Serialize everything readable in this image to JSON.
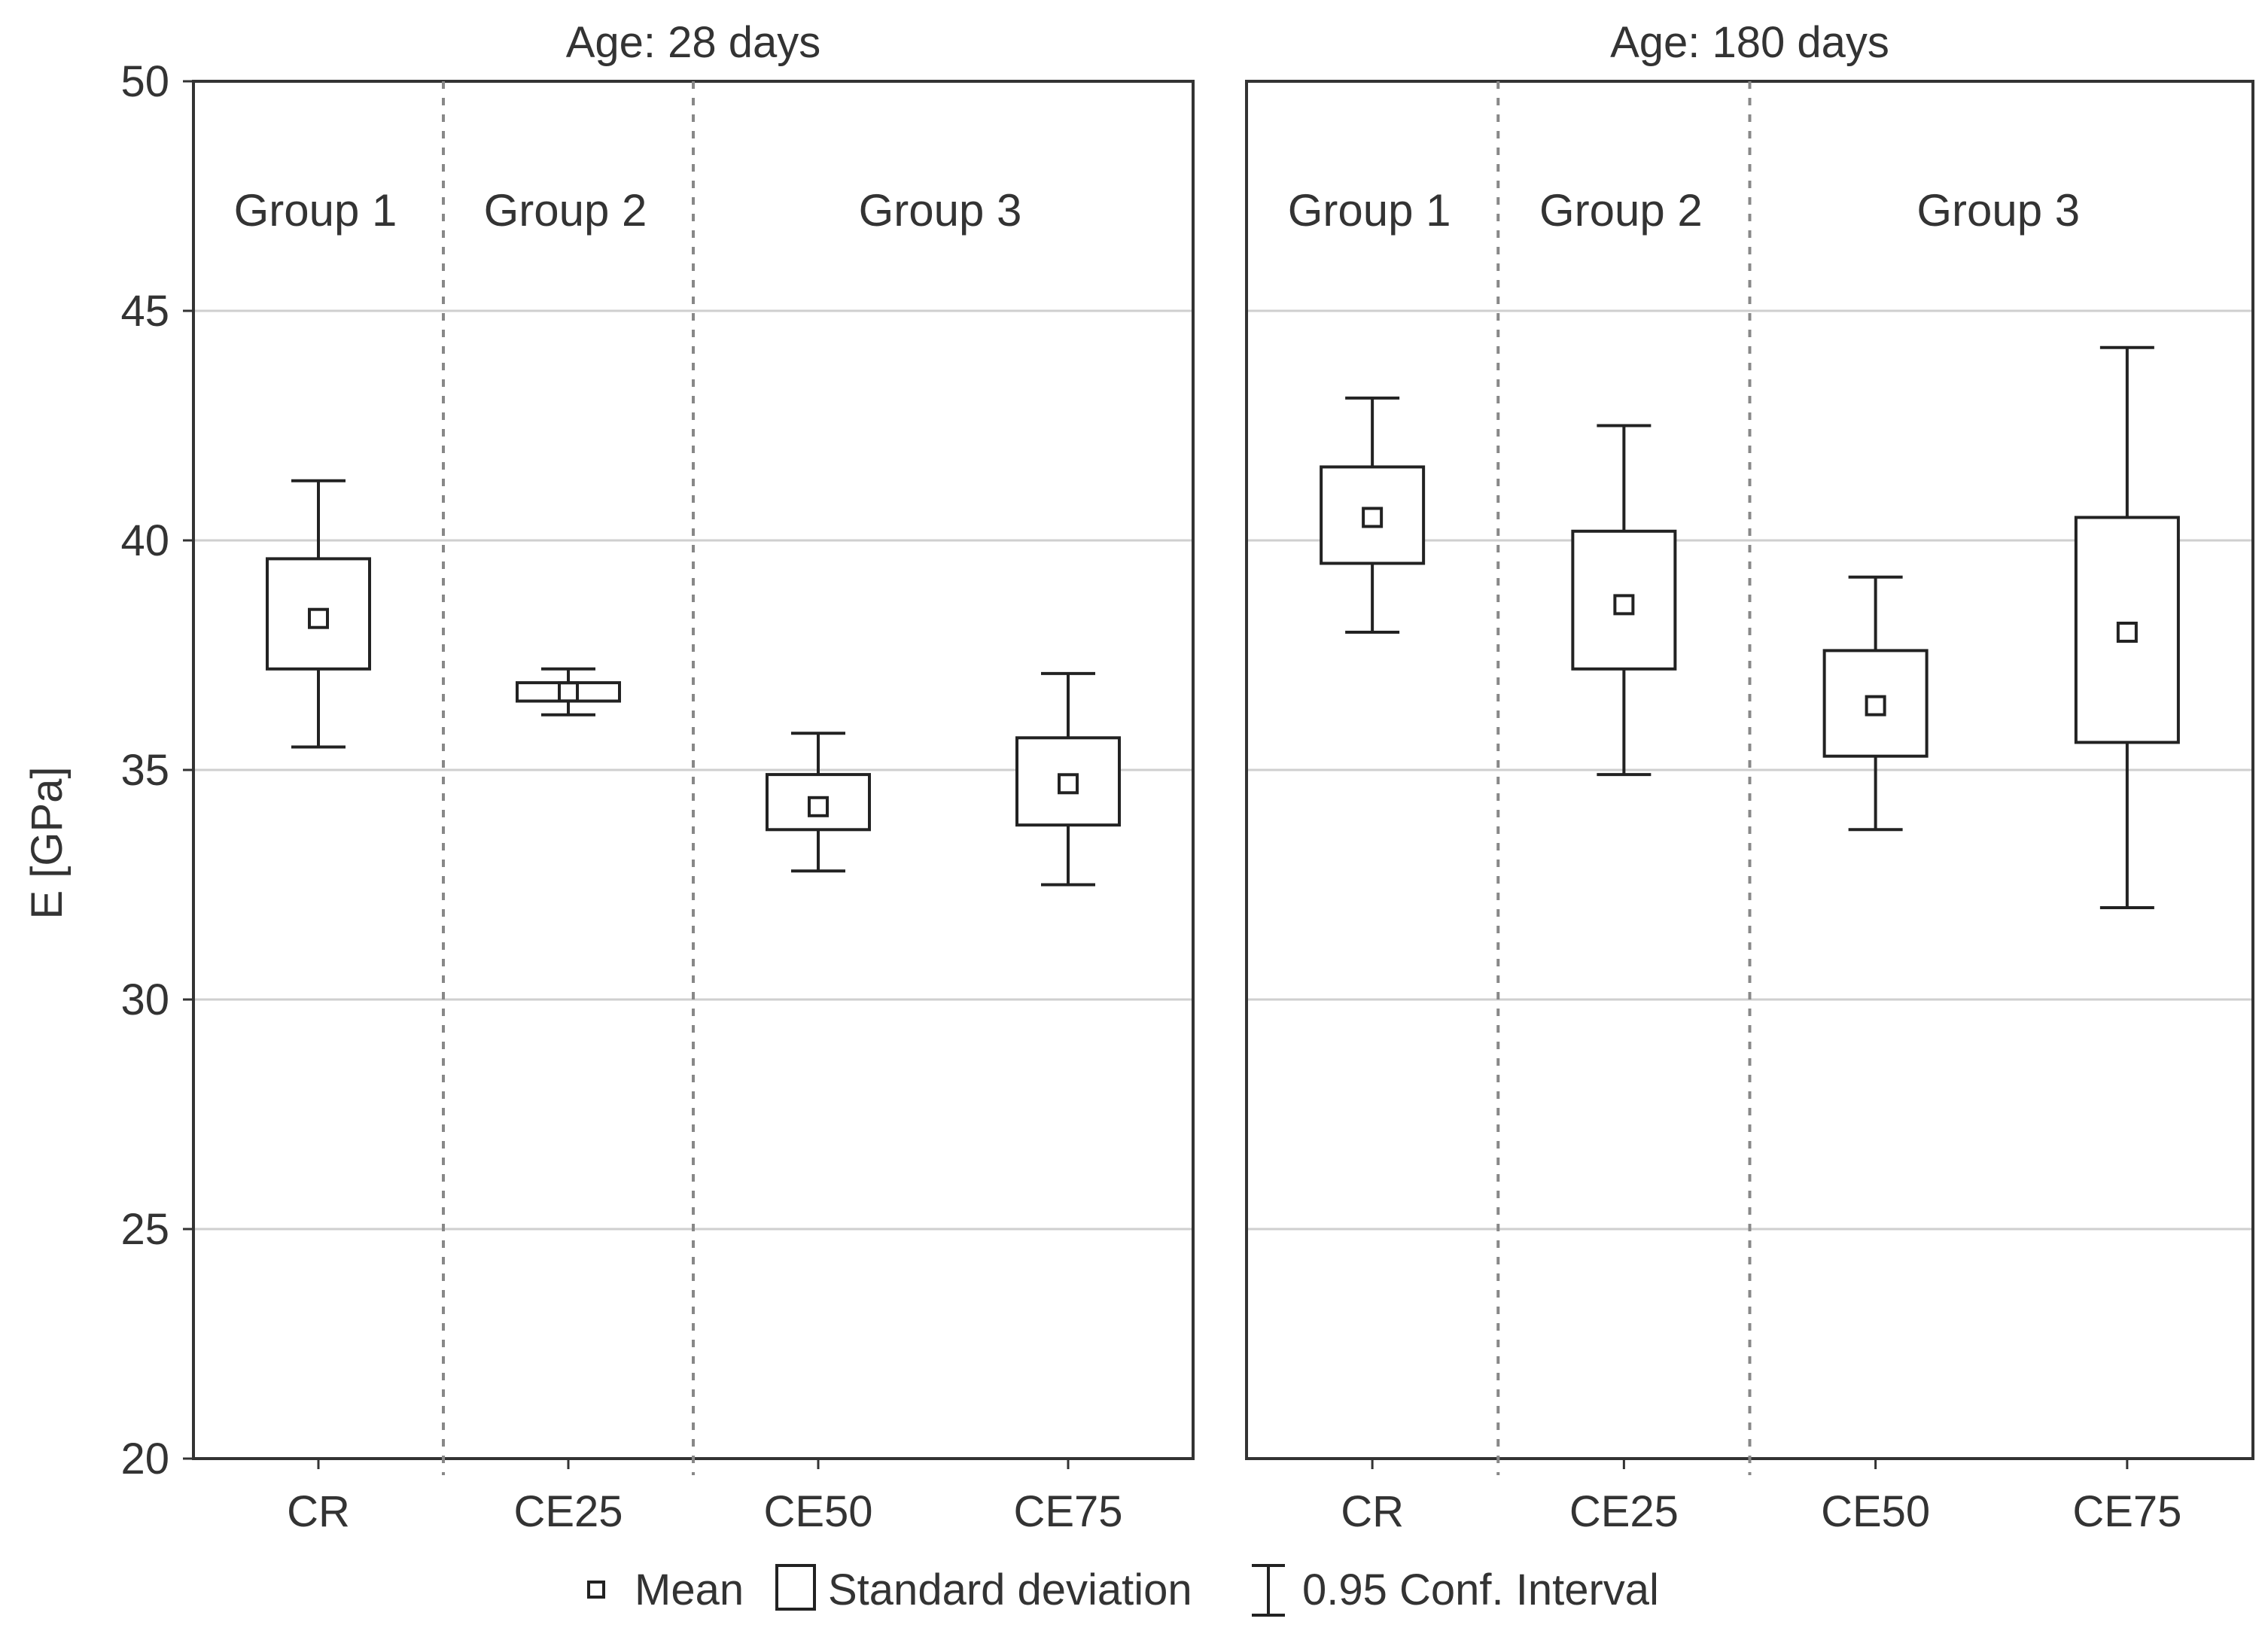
{
  "chart_data": {
    "type": "boxplot",
    "ylabel": "E [GPa]",
    "ylim": [
      20,
      50
    ],
    "yticks": [
      "20",
      "25",
      "30",
      "35",
      "40",
      "45",
      "50"
    ],
    "categories": [
      "CR",
      "CE25",
      "CE50",
      "CE75"
    ],
    "legend": {
      "mean": "Mean",
      "sd": "Standard deviation",
      "ci": "0.95 Conf. Interval"
    },
    "panels": [
      {
        "title": "Age: 28 days",
        "groups": [
          {
            "label": "Group 1",
            "span": [
              0,
              0
            ]
          },
          {
            "label": "Group 2",
            "span": [
              1,
              1
            ]
          },
          {
            "label": "Group 3",
            "span": [
              2,
              3
            ]
          }
        ],
        "boxes": [
          {
            "category": "CR",
            "mean": 38.3,
            "sd_low": 37.2,
            "sd_high": 39.6,
            "ci_low": 35.5,
            "ci_high": 41.3
          },
          {
            "category": "CE25",
            "mean": 36.7,
            "sd_low": 36.5,
            "sd_high": 36.9,
            "ci_low": 36.2,
            "ci_high": 37.2
          },
          {
            "category": "CE50",
            "mean": 34.2,
            "sd_low": 33.7,
            "sd_high": 34.9,
            "ci_low": 32.8,
            "ci_high": 35.8
          },
          {
            "category": "CE75",
            "mean": 34.7,
            "sd_low": 33.8,
            "sd_high": 35.7,
            "ci_low": 32.5,
            "ci_high": 37.1
          }
        ]
      },
      {
        "title": "Age: 180 days",
        "groups": [
          {
            "label": "Group 1",
            "span": [
              0,
              0
            ]
          },
          {
            "label": "Group 2",
            "span": [
              1,
              1
            ]
          },
          {
            "label": "Group 3",
            "span": [
              2,
              3
            ]
          }
        ],
        "boxes": [
          {
            "category": "CR",
            "mean": 40.5,
            "sd_low": 39.5,
            "sd_high": 41.6,
            "ci_low": 38.0,
            "ci_high": 43.1
          },
          {
            "category": "CE25",
            "mean": 38.6,
            "sd_low": 37.2,
            "sd_high": 40.2,
            "ci_low": 34.9,
            "ci_high": 42.5
          },
          {
            "category": "CE50",
            "mean": 36.4,
            "sd_low": 35.3,
            "sd_high": 37.6,
            "ci_low": 33.7,
            "ci_high": 39.2
          },
          {
            "category": "CE75",
            "mean": 38.0,
            "sd_low": 35.6,
            "sd_high": 40.5,
            "ci_low": 32.0,
            "ci_high": 44.2
          }
        ]
      }
    ]
  }
}
